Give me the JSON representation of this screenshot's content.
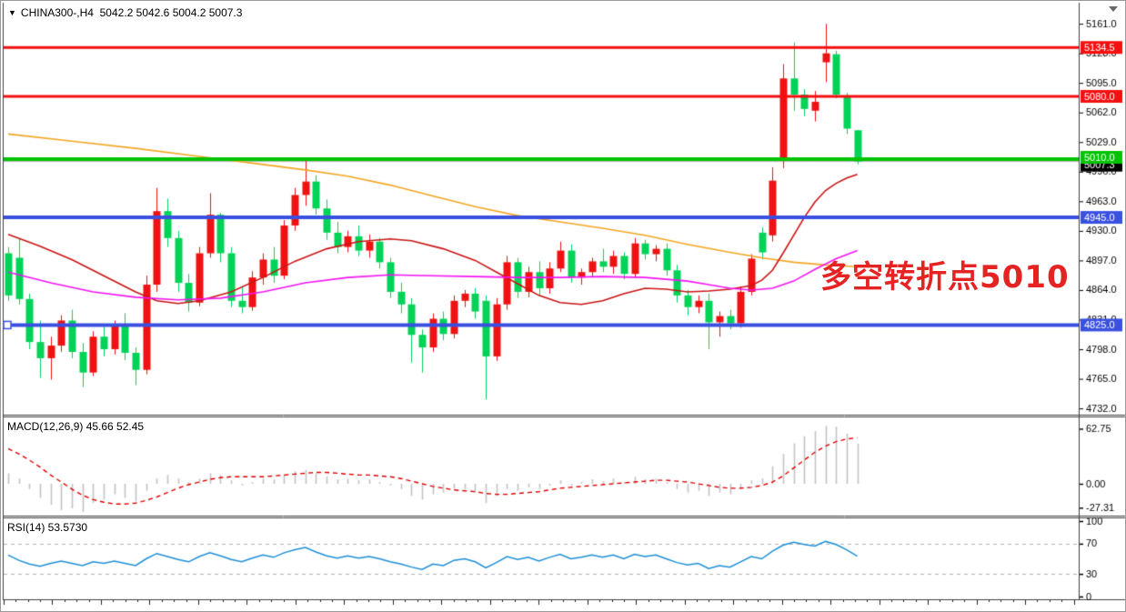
{
  "window": {
    "title": "CHINA300-,H4  5042.2 5042.6 5004.2 5007.3",
    "symbol": "CHINA300-",
    "timeframe": "H4"
  },
  "panels": {
    "macd_label": "MACD(12,26,9) 45.66 52.45",
    "rsi_label": "RSI(14) 53.5730"
  },
  "annotation": {
    "text": "多空转折点5010",
    "color": "#e62323"
  },
  "colors": {
    "bull_candle": "#f01212",
    "bear_candle": "#00d357",
    "hline_red": "#f50f0f",
    "hline_green": "#00c400",
    "hline_blue": "#3a50e0",
    "current_price_line": "#b0b0b0",
    "current_price_badge": "#000000",
    "ma_orange": "#f5a623",
    "ma_firebrick": "#cc1414",
    "ma_magenta": "#f514f5",
    "macd_histogram": "#c3c3c3",
    "macd_signal": "#e00000",
    "rsi_line": "#1e8fd8",
    "rsi_levels": "#b5b5b5"
  },
  "chart_data": {
    "type": "candlestick",
    "title": "CHINA300-,H4",
    "last_ohlc": {
      "open": 5042.2,
      "high": 5042.6,
      "low": 5004.2,
      "close": 5007.3
    },
    "price_axis_ticks": [
      "5161.0",
      "5128.0",
      "5095.0",
      "5062.0",
      "5029.0",
      "4996.0",
      "4963.0",
      "4930.0",
      "4897.0",
      "4864.0",
      "4831.0",
      "4798.0",
      "4765.0",
      "4732.0"
    ],
    "price_axis_range": [
      4732,
      5161
    ],
    "hlines": [
      {
        "price": 5134.5,
        "label": "5134.5",
        "color": "#f50f0f",
        "width": 3
      },
      {
        "price": 5080.0,
        "label": "5080.0",
        "color": "#f50f0f",
        "width": 3
      },
      {
        "price": 5010.0,
        "label": "5010.0",
        "color": "#00c400",
        "width": 4
      },
      {
        "price": 4945.0,
        "label": "4945.0",
        "color": "#3a50e0",
        "width": 4
      },
      {
        "price": 4825.0,
        "label": "4825.0",
        "color": "#3a50e0",
        "width": 4,
        "handle_left": true
      }
    ],
    "current_price": {
      "value": 5007.3,
      "label": "5007.3"
    },
    "candles": [
      [
        4905,
        4912,
        4852,
        4858
      ],
      [
        4900,
        4921,
        4848,
        4854
      ],
      [
        4854,
        4860,
        4798,
        4806
      ],
      [
        4806,
        4830,
        4766,
        4788
      ],
      [
        4788,
        4812,
        4764,
        4802
      ],
      [
        4802,
        4836,
        4795,
        4830
      ],
      [
        4830,
        4842,
        4788,
        4795
      ],
      [
        4795,
        4805,
        4756,
        4772
      ],
      [
        4772,
        4818,
        4768,
        4812
      ],
      [
        4812,
        4826,
        4790,
        4798
      ],
      [
        4798,
        4830,
        4792,
        4824
      ],
      [
        4824,
        4838,
        4786,
        4794
      ],
      [
        4794,
        4800,
        4758,
        4775
      ],
      [
        4775,
        4880,
        4770,
        4870
      ],
      [
        4870,
        4978,
        4862,
        4952
      ],
      [
        4952,
        4966,
        4912,
        4922
      ],
      [
        4922,
        4930,
        4862,
        4872
      ],
      [
        4872,
        4882,
        4840,
        4850
      ],
      [
        4850,
        4912,
        4846,
        4905
      ],
      [
        4905,
        4972,
        4900,
        4948
      ],
      [
        4948,
        4950,
        4895,
        4905
      ],
      [
        4905,
        4912,
        4845,
        4852
      ],
      [
        4852,
        4868,
        4838,
        4845
      ],
      [
        4845,
        4885,
        4841,
        4878
      ],
      [
        4878,
        4905,
        4870,
        4898
      ],
      [
        4898,
        4912,
        4872,
        4880
      ],
      [
        4880,
        4942,
        4876,
        4936
      ],
      [
        4936,
        4978,
        4930,
        4970
      ],
      [
        4970,
        5011,
        4958,
        4985
      ],
      [
        4985,
        4992,
        4948,
        4955
      ],
      [
        4955,
        4965,
        4920,
        4928
      ],
      [
        4928,
        4940,
        4905,
        4912
      ],
      [
        4912,
        4930,
        4906,
        4924
      ],
      [
        4924,
        4936,
        4902,
        4908
      ],
      [
        4908,
        4926,
        4900,
        4918
      ],
      [
        4918,
        4922,
        4888,
        4895
      ],
      [
        4895,
        4900,
        4855,
        4862
      ],
      [
        4862,
        4872,
        4838,
        4848
      ],
      [
        4848,
        4855,
        4783,
        4814
      ],
      [
        4814,
        4820,
        4772,
        4800
      ],
      [
        4800,
        4838,
        4795,
        4832
      ],
      [
        4832,
        4840,
        4808,
        4815
      ],
      [
        4815,
        4858,
        4810,
        4852
      ],
      [
        4852,
        4864,
        4845,
        4860
      ],
      [
        4860,
        4866,
        4832,
        4840
      ],
      [
        4852,
        4858,
        4742,
        4790
      ],
      [
        4790,
        4855,
        4785,
        4848
      ],
      [
        4848,
        4902,
        4842,
        4895
      ],
      [
        4895,
        4900,
        4855,
        4862
      ],
      [
        4862,
        4890,
        4856,
        4884
      ],
      [
        4884,
        4896,
        4858,
        4866
      ],
      [
        4866,
        4895,
        4860,
        4888
      ],
      [
        4888,
        4918,
        4884,
        4908
      ],
      [
        4908,
        4915,
        4872,
        4878
      ],
      [
        4878,
        4888,
        4870,
        4884
      ],
      [
        4884,
        4900,
        4878,
        4896
      ],
      [
        4896,
        4910,
        4884,
        4890
      ],
      [
        4890,
        4908,
        4882,
        4902
      ],
      [
        4902,
        4906,
        4876,
        4882
      ],
      [
        4882,
        4922,
        4878,
        4916
      ],
      [
        4916,
        4920,
        4898,
        4904
      ],
      [
        4904,
        4914,
        4896,
        4910
      ],
      [
        4910,
        4916,
        4880,
        4886
      ],
      [
        4886,
        4892,
        4850,
        4858
      ],
      [
        4858,
        4864,
        4836,
        4845
      ],
      [
        4845,
        4858,
        4838,
        4852
      ],
      [
        4852,
        4860,
        4798,
        4828
      ],
      [
        4828,
        4840,
        4812,
        4835
      ],
      [
        4835,
        4842,
        4820,
        4827
      ],
      [
        4827,
        4868,
        4822,
        4862
      ],
      [
        4862,
        4904,
        4858,
        4899
      ],
      [
        4928,
        4934,
        4898,
        4906
      ],
      [
        4925,
        5001,
        4918,
        4986
      ],
      [
        5008,
        5116,
        5000,
        5100
      ],
      [
        5100,
        5140,
        5064,
        5082
      ],
      [
        5082,
        5088,
        5058,
        5066
      ],
      [
        5064,
        5086,
        5052,
        5074
      ],
      [
        5118,
        5161,
        5096,
        5128
      ],
      [
        5127,
        5131,
        5078,
        5082
      ],
      [
        5080,
        5084,
        5038,
        5044
      ],
      [
        5042.2,
        5042.6,
        5004.2,
        5007.3
      ]
    ],
    "moving_averages": [
      {
        "name": "ma_orange",
        "points": [
          [
            0,
            5038
          ],
          [
            6,
            5030
          ],
          [
            12,
            5022
          ],
          [
            18,
            5013
          ],
          [
            24,
            5004
          ],
          [
            28,
            4998
          ],
          [
            32,
            4991
          ],
          [
            36,
            4981
          ],
          [
            40,
            4969
          ],
          [
            44,
            4957
          ],
          [
            48,
            4947
          ],
          [
            52,
            4940
          ],
          [
            56,
            4933
          ],
          [
            60,
            4925
          ],
          [
            64,
            4915
          ],
          [
            68,
            4906
          ],
          [
            71,
            4900
          ],
          [
            74,
            4895
          ],
          [
            77,
            4892
          ],
          [
            80,
            4890
          ]
        ]
      },
      {
        "name": "ma_firebrick",
        "points": [
          [
            0,
            4926
          ],
          [
            3,
            4913
          ],
          [
            6,
            4898
          ],
          [
            9,
            4880
          ],
          [
            12,
            4862
          ],
          [
            14,
            4852
          ],
          [
            16,
            4849
          ],
          [
            18,
            4852
          ],
          [
            21,
            4862
          ],
          [
            24,
            4878
          ],
          [
            27,
            4896
          ],
          [
            30,
            4910
          ],
          [
            33,
            4918
          ],
          [
            36,
            4921
          ],
          [
            38,
            4919
          ],
          [
            41,
            4910
          ],
          [
            44,
            4897
          ],
          [
            46,
            4884
          ],
          [
            48,
            4871
          ],
          [
            50,
            4858
          ],
          [
            52,
            4850
          ],
          [
            54,
            4848
          ],
          [
            56,
            4852
          ],
          [
            58,
            4860
          ],
          [
            60,
            4866
          ],
          [
            62,
            4865
          ],
          [
            64,
            4862
          ],
          [
            66,
            4863
          ],
          [
            68,
            4865
          ],
          [
            70,
            4869
          ],
          [
            71,
            4875
          ],
          [
            72,
            4886
          ],
          [
            73,
            4905
          ],
          [
            74,
            4925
          ],
          [
            75,
            4945
          ],
          [
            76,
            4962
          ],
          [
            77,
            4975
          ],
          [
            78,
            4983
          ],
          [
            79,
            4989
          ],
          [
            80,
            4993
          ]
        ]
      },
      {
        "name": "ma_magenta",
        "points": [
          [
            0,
            4884
          ],
          [
            4,
            4872
          ],
          [
            8,
            4862
          ],
          [
            12,
            4856
          ],
          [
            16,
            4853
          ],
          [
            20,
            4855
          ],
          [
            24,
            4862
          ],
          [
            28,
            4872
          ],
          [
            32,
            4878
          ],
          [
            36,
            4881
          ],
          [
            40,
            4880
          ],
          [
            44,
            4879
          ],
          [
            48,
            4878
          ],
          [
            52,
            4878
          ],
          [
            56,
            4879
          ],
          [
            60,
            4878
          ],
          [
            64,
            4874
          ],
          [
            66,
            4870
          ],
          [
            68,
            4866
          ],
          [
            70,
            4864
          ],
          [
            72,
            4866
          ],
          [
            74,
            4874
          ],
          [
            76,
            4887
          ],
          [
            78,
            4899
          ],
          [
            80,
            4908
          ]
        ]
      }
    ],
    "macd": {
      "label": "MACD(12,26,9)",
      "values": [
        45.66,
        52.45
      ],
      "axis_ticks": [
        "62.75",
        "0.00",
        "-27.31"
      ],
      "histogram": [
        12,
        6,
        -6,
        -16,
        -24,
        -30,
        -28,
        -32,
        -22,
        -18,
        -12,
        -16,
        -20,
        -8,
        6,
        10,
        6,
        2,
        6,
        12,
        10,
        4,
        -2,
        2,
        6,
        5,
        10,
        14,
        16,
        12,
        8,
        5,
        6,
        4,
        5,
        2,
        -2,
        -6,
        -14,
        -18,
        -12,
        -10,
        -6,
        -6,
        -10,
        -22,
        -14,
        -6,
        -8,
        -4,
        -6,
        -2,
        4,
        -2,
        2,
        5,
        3,
        6,
        2,
        8,
        5,
        6,
        2,
        -6,
        -10,
        -8,
        -14,
        -10,
        -12,
        -6,
        4,
        6,
        20,
        34,
        46,
        54,
        60,
        66,
        65,
        57,
        45.66
      ],
      "signal": [
        40,
        34,
        27,
        19,
        10,
        2,
        -6,
        -13,
        -18,
        -21,
        -23,
        -23,
        -22,
        -19,
        -15,
        -10,
        -5,
        -1,
        2,
        5,
        7,
        8,
        8,
        8,
        8,
        9,
        10,
        11,
        12,
        13,
        13,
        12,
        11,
        10,
        10,
        9,
        8,
        6,
        3,
        0,
        -3,
        -5,
        -7,
        -8,
        -9,
        -11,
        -12,
        -12,
        -11,
        -10,
        -9,
        -7,
        -5,
        -4,
        -3,
        -2,
        -1,
        0,
        1,
        2,
        3,
        4,
        4,
        3,
        2,
        0,
        -2,
        -4,
        -5,
        -5,
        -4,
        -2,
        2,
        9,
        18,
        27,
        36,
        43,
        48,
        51,
        52.45
      ]
    },
    "rsi": {
      "label": "RSI(14)",
      "value": 53.573,
      "axis_ticks": [
        "100",
        "70",
        "30",
        "0"
      ],
      "levels": [
        70,
        30
      ],
      "values": [
        55,
        48,
        43,
        40,
        44,
        47,
        44,
        41,
        46,
        44,
        47,
        44,
        41,
        50,
        57,
        53,
        49,
        46,
        53,
        58,
        54,
        49,
        46,
        51,
        55,
        52,
        58,
        62,
        65,
        59,
        54,
        51,
        54,
        51,
        53,
        50,
        46,
        43,
        39,
        36,
        43,
        41,
        48,
        50,
        46,
        38,
        45,
        53,
        49,
        52,
        47,
        52,
        56,
        50,
        52,
        55,
        52,
        55,
        50,
        56,
        53,
        55,
        50,
        45,
        42,
        44,
        37,
        41,
        39,
        46,
        53,
        50,
        60,
        68,
        72,
        69,
        67,
        73,
        69,
        62,
        53.57
      ]
    }
  }
}
